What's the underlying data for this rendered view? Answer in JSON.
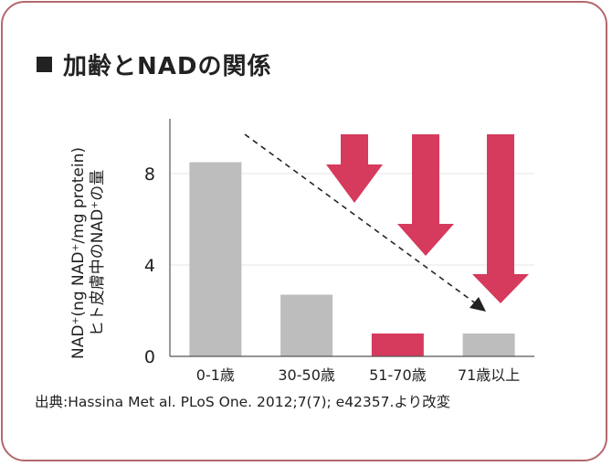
{
  "heading": {
    "icon": "black-square-icon",
    "text": "加齢とNADの関係"
  },
  "chart_data": {
    "type": "bar",
    "categories": [
      "0-1歳",
      "30-50歳",
      "51-70歳",
      "71歳以上"
    ],
    "values": [
      8.5,
      2.7,
      1.0,
      1.0
    ],
    "bar_colors": [
      "#bdbdbd",
      "#bdbdbd",
      "#d63a5d",
      "#bdbdbd"
    ],
    "ylabel_line1": "NAD⁺(ng NAD⁺/mg protein)",
    "ylabel_line2": "ヒト皮膚中のNAD⁺の量",
    "yticks": [
      0,
      4,
      8
    ],
    "ylim": [
      0,
      10
    ],
    "grid": true,
    "annotations": [
      {
        "type": "dashed-arrow",
        "from_category": "30-50歳",
        "to_category": "71歳以上",
        "meaning": "declining trend"
      },
      {
        "type": "red-down-arrow",
        "category": "51-70歳",
        "size": "small"
      },
      {
        "type": "red-down-arrow",
        "category": "51-70歳/71歳以上",
        "size": "medium"
      },
      {
        "type": "red-down-arrow",
        "category": "71歳以上",
        "size": "large"
      }
    ]
  },
  "colors": {
    "accent_red": "#d63a5d",
    "bar_gray": "#bdbdbd",
    "frame": "#b5676e"
  },
  "source": "出典:Hassina Met al. PLoS One. 2012;7(7); e42357.より改変"
}
